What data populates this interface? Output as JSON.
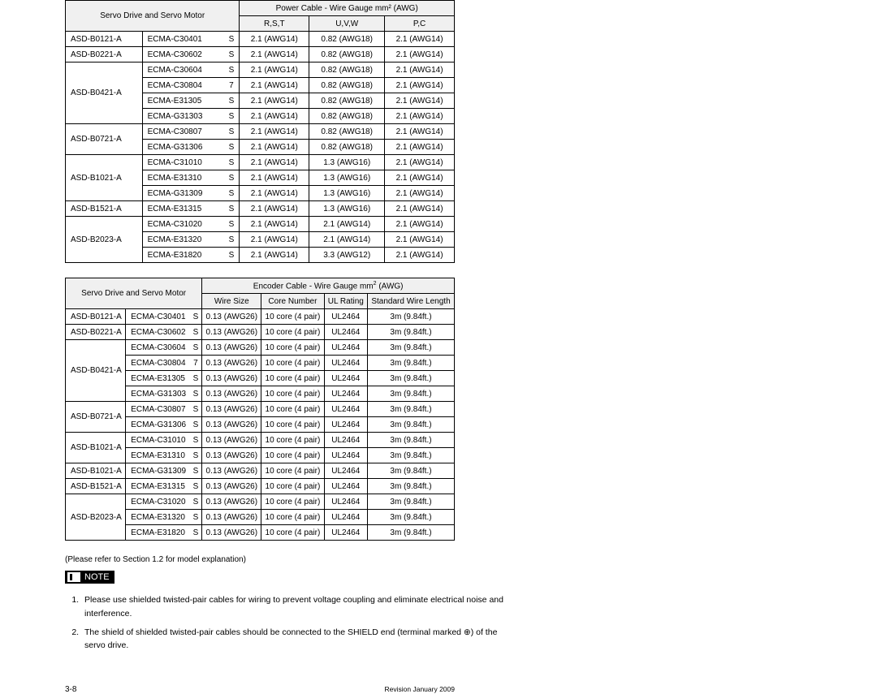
{
  "table1": {
    "header_main": "Servo Drive and Servo Motor",
    "header_group": "Power Cable - Wire Gauge mm² (AWG)",
    "sub1": "R,S,T",
    "sub2": "U,V,W",
    "sub3": "P,C",
    "groups": [
      {
        "drive": "ASD-B0121-A",
        "rows": [
          {
            "m": "ECMA-C30401",
            "c": "S",
            "a": "2.1 (AWG14)",
            "b": "0.82 (AWG18)",
            "d": "2.1 (AWG14)"
          }
        ]
      },
      {
        "drive": "ASD-B0221-A",
        "rows": [
          {
            "m": "ECMA-C30602",
            "c": "S",
            "a": "2.1 (AWG14)",
            "b": "0.82 (AWG18)",
            "d": "2.1 (AWG14)"
          }
        ]
      },
      {
        "drive": "ASD-B0421-A",
        "rows": [
          {
            "m": "ECMA-C30604",
            "c": "S",
            "a": "2.1 (AWG14)",
            "b": "0.82 (AWG18)",
            "d": "2.1 (AWG14)"
          },
          {
            "m": "ECMA-C30804",
            "c": "7",
            "a": "2.1 (AWG14)",
            "b": "0.82 (AWG18)",
            "d": "2.1 (AWG14)"
          },
          {
            "m": "ECMA-E31305",
            "c": "S",
            "a": "2.1 (AWG14)",
            "b": "0.82 (AWG18)",
            "d": "2.1 (AWG14)"
          },
          {
            "m": "ECMA-G31303",
            "c": "S",
            "a": "2.1 (AWG14)",
            "b": "0.82 (AWG18)",
            "d": "2.1 (AWG14)"
          }
        ]
      },
      {
        "drive": "ASD-B0721-A",
        "rows": [
          {
            "m": "ECMA-C30807",
            "c": "S",
            "a": "2.1 (AWG14)",
            "b": "0.82 (AWG18)",
            "d": "2.1 (AWG14)"
          },
          {
            "m": "ECMA-G31306",
            "c": "S",
            "a": "2.1 (AWG14)",
            "b": "0.82 (AWG18)",
            "d": "2.1 (AWG14)"
          }
        ]
      },
      {
        "drive": "ASD-B1021-A",
        "rows": [
          {
            "m": "ECMA-C31010",
            "c": "S",
            "a": "2.1 (AWG14)",
            "b": "1.3 (AWG16)",
            "d": "2.1 (AWG14)"
          },
          {
            "m": "ECMA-E31310",
            "c": "S",
            "a": "2.1 (AWG14)",
            "b": "1.3 (AWG16)",
            "d": "2.1 (AWG14)"
          },
          {
            "m": "ECMA-G31309",
            "c": "S",
            "a": "2.1 (AWG14)",
            "b": "1.3 (AWG16)",
            "d": "2.1 (AWG14)"
          }
        ]
      },
      {
        "drive": "ASD-B1521-A",
        "rows": [
          {
            "m": "ECMA-E31315",
            "c": "S",
            "a": "2.1 (AWG14)",
            "b": "1.3 (AWG16)",
            "d": "2.1 (AWG14)"
          }
        ]
      },
      {
        "drive": "ASD-B2023-A",
        "rows": [
          {
            "m": "ECMA-C31020",
            "c": "S",
            "a": "2.1 (AWG14)",
            "b": "2.1 (AWG14)",
            "d": "2.1 (AWG14)"
          },
          {
            "m": "ECMA-E31320",
            "c": "S",
            "a": "2.1 (AWG14)",
            "b": "2.1 (AWG14)",
            "d": "2.1 (AWG14)"
          },
          {
            "m": "ECMA-E31820",
            "c": "S",
            "a": "2.1 (AWG14)",
            "b": "3.3 (AWG12)",
            "d": "2.1 (AWG14)"
          }
        ]
      }
    ]
  },
  "table2": {
    "header_main": "Servo Drive and Servo Motor",
    "header_group_html": "Encoder Cable - Wire Gauge mm<sup>2</sup> (AWG)",
    "c1": "Wire Size",
    "c2": "Core Number",
    "c3": "UL Rating",
    "c4": "Standard Wire Length",
    "groups": [
      {
        "drive": "ASD-B0121-A",
        "rows": [
          {
            "m": "ECMA-C30401",
            "c": "S",
            "a": "0.13 (AWG26)",
            "b": "10 core (4 pair)",
            "d": "UL2464",
            "e": "3m (9.84ft.)"
          }
        ]
      },
      {
        "drive": "ASD-B0221-A",
        "rows": [
          {
            "m": "ECMA-C30602",
            "c": "S",
            "a": "0.13 (AWG26)",
            "b": "10 core (4 pair)",
            "d": "UL2464",
            "e": "3m (9.84ft.)"
          }
        ]
      },
      {
        "drive": "ASD-B0421-A",
        "rows": [
          {
            "m": "ECMA-C30604",
            "c": "S",
            "a": "0.13 (AWG26)",
            "b": "10 core (4 pair)",
            "d": "UL2464",
            "e": "3m (9.84ft.)"
          },
          {
            "m": "ECMA-C30804",
            "c": "7",
            "a": "0.13 (AWG26)",
            "b": "10 core (4 pair)",
            "d": "UL2464",
            "e": "3m (9.84ft.)"
          },
          {
            "m": "ECMA-E31305",
            "c": "S",
            "a": "0.13 (AWG26)",
            "b": "10 core (4 pair)",
            "d": "UL2464",
            "e": "3m (9.84ft.)"
          },
          {
            "m": "ECMA-G31303",
            "c": "S",
            "a": "0.13 (AWG26)",
            "b": "10 core (4 pair)",
            "d": "UL2464",
            "e": "3m (9.84ft.)"
          }
        ]
      },
      {
        "drive": "ASD-B0721-A",
        "rows": [
          {
            "m": "ECMA-C30807",
            "c": "S",
            "a": "0.13 (AWG26)",
            "b": "10 core (4 pair)",
            "d": "UL2464",
            "e": "3m (9.84ft.)"
          },
          {
            "m": "ECMA-G31306",
            "c": "S",
            "a": "0.13 (AWG26)",
            "b": "10 core (4 pair)",
            "d": "UL2464",
            "e": "3m (9.84ft.)"
          }
        ]
      },
      {
        "drive": "ASD-B1021-A",
        "rows": [
          {
            "m": "ECMA-C31010",
            "c": "S",
            "a": "0.13 (AWG26)",
            "b": "10 core (4 pair)",
            "d": "UL2464",
            "e": "3m (9.84ft.)"
          },
          {
            "m": "ECMA-E31310",
            "c": "S",
            "a": "0.13 (AWG26)",
            "b": "10 core (4 pair)",
            "d": "UL2464",
            "e": "3m (9.84ft.)"
          }
        ]
      },
      {
        "drive": "ASD-B1021-A",
        "rows": [
          {
            "m": "ECMA-G31309",
            "c": "S",
            "a": "0.13 (AWG26)",
            "b": "10 core (4 pair)",
            "d": "UL2464",
            "e": "3m (9.84ft.)"
          }
        ]
      },
      {
        "drive": "ASD-B1521-A",
        "rows": [
          {
            "m": "ECMA-E31315",
            "c": "S",
            "a": "0.13 (AWG26)",
            "b": "10 core (4 pair)",
            "d": "UL2464",
            "e": "3m (9.84ft.)"
          }
        ]
      },
      {
        "drive": "ASD-B2023-A",
        "rows": [
          {
            "m": "ECMA-C31020",
            "c": "S",
            "a": "0.13 (AWG26)",
            "b": "10 core (4 pair)",
            "d": "UL2464",
            "e": "3m (9.84ft.)"
          },
          {
            "m": "ECMA-E31320",
            "c": "S",
            "a": "0.13 (AWG26)",
            "b": "10 core (4 pair)",
            "d": "UL2464",
            "e": "3m (9.84ft.)"
          },
          {
            "m": "ECMA-E31820",
            "c": "S",
            "a": "0.13 (AWG26)",
            "b": "10 core (4 pair)",
            "d": "UL2464",
            "e": "3m (9.84ft.)"
          }
        ]
      }
    ]
  },
  "ref_text": "(Please refer to Section 1.2 for model explanation)",
  "note_label": "NOTE",
  "notes": [
    "Please use shielded twisted-pair cables for wiring to prevent voltage coupling and eliminate electrical noise and interference.",
    "The shield of shielded twisted-pair cables should be connected to the SHIELD end (terminal marked ⊕) of the servo drive."
  ],
  "footer": {
    "page": "3-8",
    "rev": "Revision January 2009"
  }
}
